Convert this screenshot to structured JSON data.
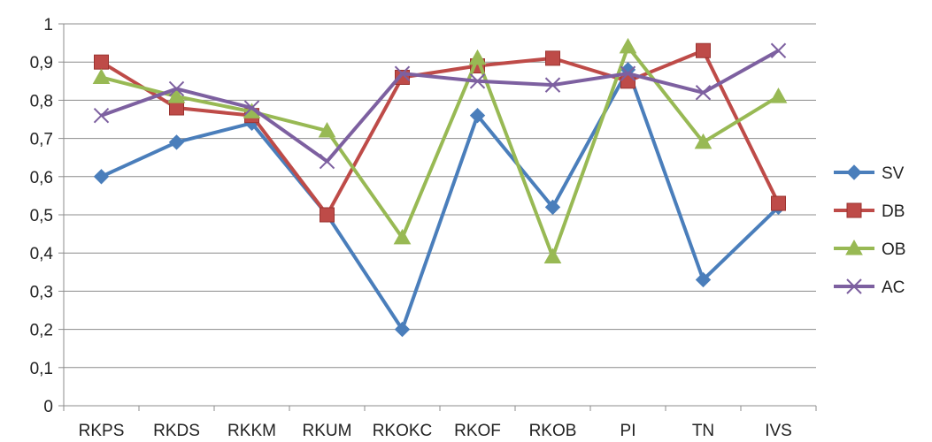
{
  "chart_data": {
    "type": "line",
    "title": "",
    "xlabel": "",
    "ylabel": "",
    "categories": [
      "RKPS",
      "RKDS",
      "RKKM",
      "RKUM",
      "RKOKC",
      "RKOF",
      "RKOB",
      "PI",
      "TN",
      "IVS"
    ],
    "ylim": [
      0,
      1
    ],
    "yticks": [
      0,
      0.1,
      0.2,
      0.3,
      0.4,
      0.5,
      0.6,
      0.7,
      0.8,
      0.9,
      1
    ],
    "ytick_labels": [
      "0",
      "0,1",
      "0,2",
      "0,3",
      "0,4",
      "0,5",
      "0,6",
      "0,7",
      "0,8",
      "0,9",
      "1"
    ],
    "grid": true,
    "legend_position": "right",
    "series": [
      {
        "name": "SV",
        "color": "#4A7EBB",
        "marker": "diamond",
        "values": [
          0.6,
          0.69,
          0.74,
          0.5,
          0.2,
          0.76,
          0.52,
          0.88,
          0.33,
          0.52
        ]
      },
      {
        "name": "DB",
        "color": "#BE4B48",
        "marker": "square",
        "values": [
          0.9,
          0.78,
          0.76,
          0.5,
          0.86,
          0.89,
          0.91,
          0.85,
          0.93,
          0.53
        ]
      },
      {
        "name": "OB",
        "color": "#98B954",
        "marker": "triangle",
        "values": [
          0.86,
          0.81,
          0.77,
          0.72,
          0.44,
          0.91,
          0.39,
          0.94,
          0.69,
          0.81
        ]
      },
      {
        "name": "AC",
        "color": "#7D60A0",
        "marker": "x",
        "values": [
          0.76,
          0.83,
          0.78,
          0.64,
          0.87,
          0.85,
          0.84,
          0.87,
          0.82,
          0.93
        ]
      }
    ]
  }
}
